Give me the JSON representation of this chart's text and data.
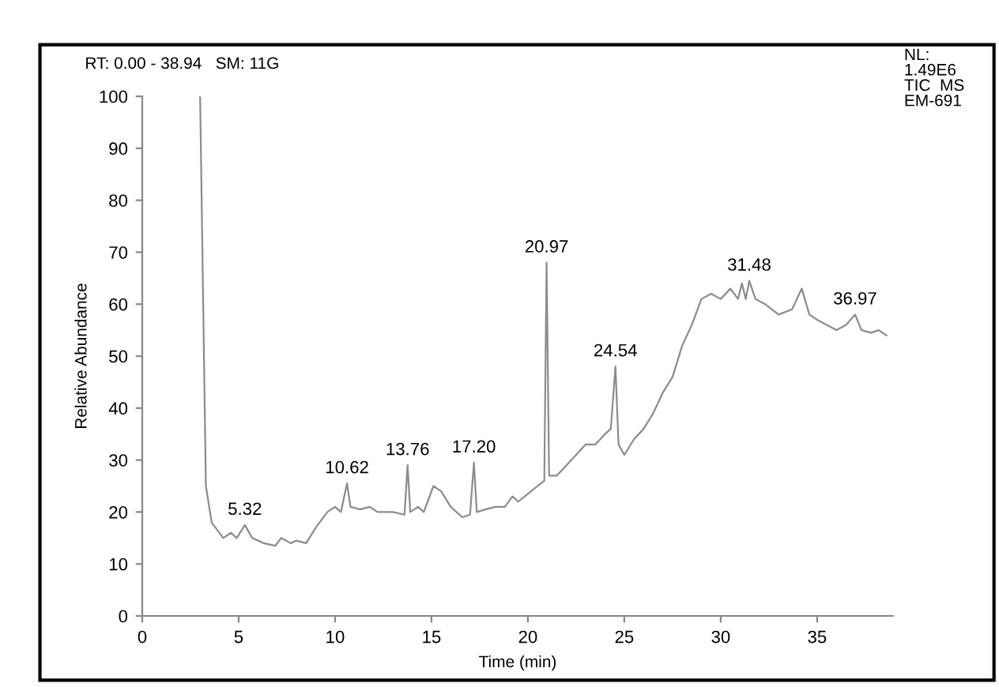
{
  "chart_data": {
    "type": "line",
    "xlabel": "Time (min)",
    "ylabel": "Relative Abundance",
    "annotations": [
      "RT: 0.00 - 38.94   SM: 11G",
      "NL:\n1.49E6\nTIC  MS\nEM-691",
      {
        "text": "5.32",
        "x": 5.32,
        "y": 17.5
      },
      {
        "text": "10.62",
        "x": 10.62,
        "y": 25.5
      },
      {
        "text": "13.76",
        "x": 13.76,
        "y": 29
      },
      {
        "text": "17.20",
        "x": 17.2,
        "y": 29.5
      },
      {
        "text": "20.97",
        "x": 20.97,
        "y": 68
      },
      {
        "text": "24.54",
        "x": 24.54,
        "y": 48
      },
      {
        "text": "31.48",
        "x": 31.48,
        "y": 64.5
      },
      {
        "text": "36.97",
        "x": 36.97,
        "y": 58
      }
    ],
    "x": [
      3.0,
      3.3,
      3.6,
      4.2,
      4.6,
      4.9,
      5.32,
      5.7,
      6.3,
      6.9,
      7.2,
      7.7,
      8.0,
      8.5,
      9.0,
      9.6,
      10.0,
      10.3,
      10.62,
      10.8,
      11.3,
      11.8,
      12.2,
      13.0,
      13.6,
      13.76,
      13.9,
      14.3,
      14.6,
      15.1,
      15.5,
      16.0,
      16.6,
      17.0,
      17.2,
      17.35,
      17.8,
      18.3,
      18.8,
      19.2,
      19.5,
      20.0,
      20.5,
      20.85,
      20.97,
      21.1,
      21.5,
      22.0,
      22.5,
      23.0,
      23.5,
      24.0,
      24.3,
      24.54,
      24.7,
      25.0,
      25.5,
      26.0,
      26.5,
      27.0,
      27.5,
      28.0,
      28.5,
      29.0,
      29.5,
      30.0,
      30.5,
      30.9,
      31.1,
      31.3,
      31.48,
      31.8,
      32.3,
      33.0,
      33.7,
      34.2,
      34.6,
      35.0,
      35.5,
      36.0,
      36.5,
      36.97,
      37.3,
      37.8,
      38.2,
      38.6
    ],
    "series": [
      {
        "color": "#8c8c8c",
        "values": [
          100,
          25,
          18,
          15,
          16,
          15,
          17.5,
          15,
          14,
          13.5,
          15,
          14,
          14.5,
          14,
          17,
          20,
          21,
          20,
          25.5,
          21,
          20.5,
          21,
          20,
          20,
          19.5,
          29,
          20,
          21,
          20,
          25,
          24,
          21,
          19,
          19.5,
          29.5,
          20,
          20.5,
          21,
          21,
          23,
          22,
          23.5,
          25,
          26,
          68,
          27,
          27,
          29,
          31,
          33,
          33,
          35,
          36,
          48,
          33,
          31,
          34,
          36,
          39,
          43,
          46,
          52,
          56,
          61,
          62,
          61,
          63,
          61,
          64,
          61,
          64.5,
          61,
          60,
          58,
          59,
          63,
          58,
          57,
          56,
          55,
          56,
          58,
          55,
          54.5,
          55,
          54
        ]
      }
    ],
    "xlim": [
      0,
      38.94
    ],
    "xticks": [
      0,
      5,
      10,
      15,
      20,
      25,
      30,
      35
    ],
    "ylim": [
      0,
      100
    ],
    "yticks": [
      0,
      10,
      20,
      30,
      40,
      50,
      60,
      70,
      80,
      90,
      100
    ],
    "grid": false,
    "legend": false,
    "marker": "none",
    "line_style": "solid"
  }
}
